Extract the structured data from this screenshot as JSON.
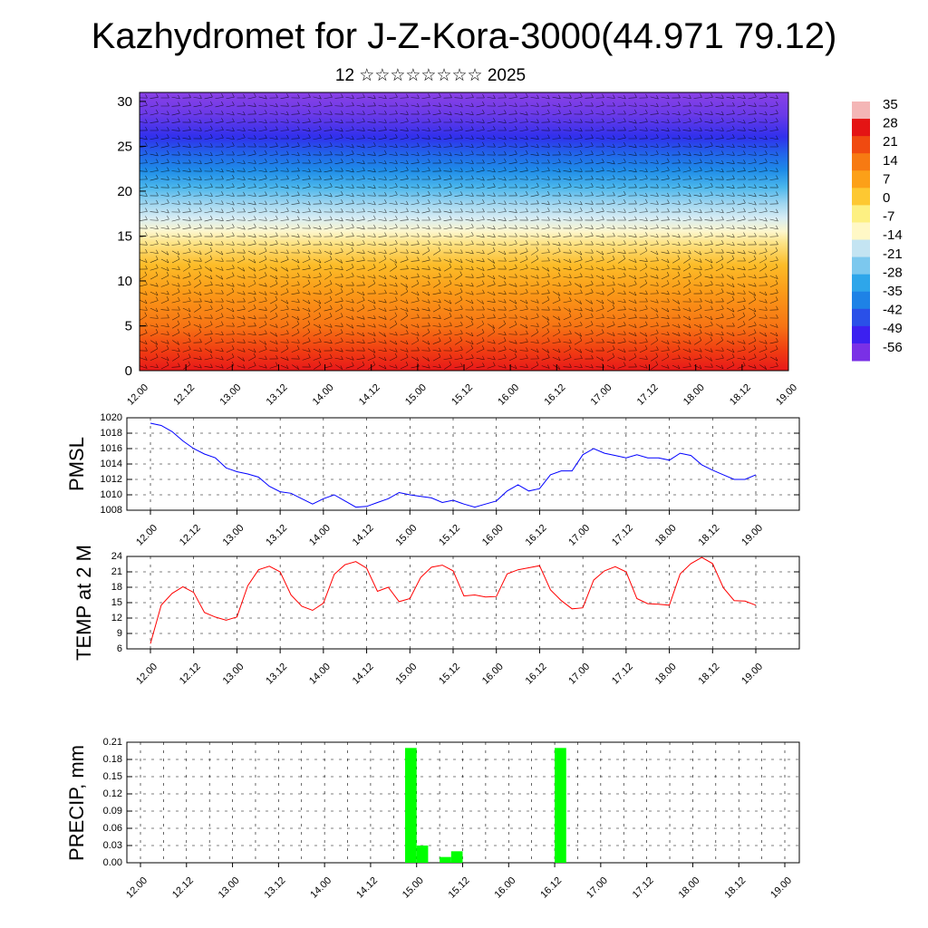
{
  "header": {
    "title": "Kazhydromet for J-Z-Kora-3000(44.971 79.12)",
    "subtitle": "12 ☆☆☆☆☆☆☆☆ 2025"
  },
  "x_tick_labels": [
    "12.00",
    "12.12",
    "13.00",
    "13.12",
    "14.00",
    "14.12",
    "15.00",
    "15.12",
    "16.00",
    "16.12",
    "17.00",
    "17.12",
    "18.00",
    "18.12",
    "19.00"
  ],
  "chart_data": [
    {
      "type": "heatmap",
      "name": "temperature-wind-cross-section",
      "x": [
        "12.00",
        "12.12",
        "13.00",
        "13.12",
        "14.00",
        "14.12",
        "15.00",
        "15.12",
        "16.00",
        "16.12",
        "17.00",
        "17.12",
        "18.00",
        "18.12",
        "19.00"
      ],
      "ylim": [
        0,
        31
      ],
      "y_ticks": [
        0,
        5,
        10,
        15,
        20,
        25,
        30
      ],
      "colorbar_labels": [
        "35",
        "28",
        "21",
        "14",
        "7",
        "0",
        "-7",
        "-14",
        "-21",
        "-28",
        "-35",
        "-42",
        "-49",
        "-56"
      ],
      "colorbar_values": [
        35,
        28,
        21,
        14,
        7,
        0,
        -7,
        -14,
        -21,
        -28,
        -35,
        -42,
        -49,
        -56
      ],
      "colorbar_colors": [
        "#f4b6b6",
        "#e41414",
        "#f04a10",
        "#f77a12",
        "#fca018",
        "#fdc832",
        "#fdf082",
        "#fff8c6",
        "#c4e4f2",
        "#7cc8ee",
        "#2ea6ea",
        "#1e82e6",
        "#2a50e8",
        "#3c20f0",
        "#7a30e6"
      ],
      "description_bands": [
        {
          "height_range": [
            0,
            5
          ],
          "temp_approx": 21
        },
        {
          "height_range": [
            5,
            12
          ],
          "temp_approx": 10
        },
        {
          "height_range": [
            12,
            15
          ],
          "temp_approx": -5
        },
        {
          "height_range": [
            15,
            20
          ],
          "temp_approx": -25
        },
        {
          "height_range": [
            20,
            25
          ],
          "temp_approx": -45
        },
        {
          "height_range": [
            25,
            31
          ],
          "temp_approx": -56
        }
      ],
      "wind_barbs": true
    },
    {
      "type": "line",
      "name": "PMSL",
      "ylabel": "PMSL",
      "ylim": [
        1008,
        1020
      ],
      "y_ticks": [
        1008,
        1010,
        1012,
        1014,
        1016,
        1018,
        1020
      ],
      "x_hours": [
        0,
        3,
        6,
        9,
        12,
        15,
        18,
        21,
        24,
        27,
        30,
        33,
        36,
        39,
        42,
        45,
        48,
        51,
        54,
        57,
        60,
        63,
        66,
        69,
        72,
        75,
        78,
        81,
        84,
        87,
        90,
        93,
        96,
        99,
        102,
        105,
        108,
        111,
        114,
        117,
        120,
        123,
        126,
        129,
        132,
        135,
        138,
        141,
        144,
        147,
        150,
        153,
        156,
        159,
        162,
        165,
        168
      ],
      "values": [
        1019.3,
        1019.0,
        1018.2,
        1017.0,
        1016.0,
        1015.3,
        1014.8,
        1013.5,
        1013.0,
        1012.7,
        1012.3,
        1011.1,
        1010.4,
        1010.2,
        1009.5,
        1008.8,
        1009.5,
        1010.0,
        1009.2,
        1008.4,
        1008.5,
        1009.0,
        1009.5,
        1010.3,
        1010.0,
        1009.8,
        1009.6,
        1009.0,
        1009.3,
        1008.8,
        1008.4,
        1008.8,
        1009.2,
        1010.5,
        1011.3,
        1010.5,
        1010.8,
        1012.6,
        1013.1,
        1013.1,
        1015.2,
        1016.0,
        1015.4,
        1015.1,
        1014.8,
        1015.2,
        1014.8,
        1014.8,
        1014.5,
        1015.4,
        1015.1,
        1013.9,
        1013.2,
        1012.6,
        1012.0,
        1012.0,
        1012.6
      ],
      "color": "#0000ff"
    },
    {
      "type": "line",
      "name": "TEMP at 2 M",
      "ylabel": "TEMP at 2 M",
      "ylim": [
        6,
        24
      ],
      "y_ticks": [
        6,
        9,
        12,
        15,
        18,
        21,
        24
      ],
      "x_hours": [
        0,
        3,
        6,
        9,
        12,
        15,
        18,
        21,
        24,
        27,
        30,
        33,
        36,
        39,
        42,
        45,
        48,
        51,
        54,
        57,
        60,
        63,
        66,
        69,
        72,
        75,
        78,
        81,
        84,
        87,
        90,
        93,
        96,
        99,
        102,
        105,
        108,
        111,
        114,
        117,
        120,
        123,
        126,
        129,
        132,
        135,
        138,
        141,
        144,
        147,
        150,
        153,
        156,
        159,
        162,
        165,
        168
      ],
      "values": [
        7.0,
        14.5,
        16.8,
        18.1,
        17.0,
        13.1,
        12.2,
        11.6,
        12.2,
        18.3,
        21.4,
        22.1,
        21.0,
        16.5,
        14.3,
        13.5,
        14.9,
        20.5,
        22.4,
        23.0,
        21.7,
        17.2,
        18.0,
        15.2,
        15.8,
        19.9,
        21.9,
        22.3,
        21.2,
        16.3,
        16.5,
        16.1,
        16.2,
        20.6,
        21.4,
        21.8,
        22.2,
        17.5,
        15.4,
        13.8,
        14.0,
        19.4,
        21.2,
        22.0,
        21.0,
        15.8,
        14.8,
        14.7,
        14.5,
        20.6,
        22.6,
        23.8,
        22.6,
        17.9,
        15.4,
        15.3,
        14.5
      ],
      "color": "#ff0000"
    },
    {
      "type": "bar",
      "name": "PRECIP, mm",
      "ylabel": "PRECIP, mm",
      "ylim": [
        0,
        0.21
      ],
      "y_tick_labels": [
        "0.00",
        "0.03",
        "0.06",
        "0.09",
        "0.12",
        "0.15",
        "0.18",
        "0.21"
      ],
      "x_hours": [
        69,
        72,
        78,
        81,
        108
      ],
      "values": [
        0.2,
        0.03,
        0.01,
        0.02,
        0.2
      ],
      "color": "#00ff00"
    }
  ]
}
